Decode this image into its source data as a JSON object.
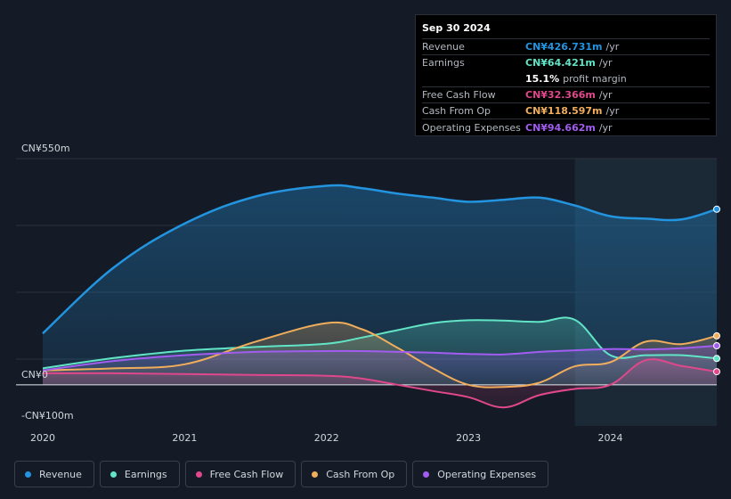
{
  "tooltip": {
    "date": "Sep 30 2024",
    "rows": [
      {
        "label": "Revenue",
        "value": "CN¥426.731m",
        "unit": "/yr",
        "color": "#2394df"
      },
      {
        "label": "Earnings",
        "value": "CN¥64.421m",
        "unit": "/yr",
        "color": "#61e5c6"
      },
      {
        "label": "",
        "value": "15.1%",
        "unit": "profit margin",
        "color": "#ffffff"
      },
      {
        "label": "Free Cash Flow",
        "value": "CN¥32.366m",
        "unit": "/yr",
        "color": "#e0488b"
      },
      {
        "label": "Cash From Op",
        "value": "CN¥118.597m",
        "unit": "/yr",
        "color": "#f0ad5c"
      },
      {
        "label": "Operating Expenses",
        "value": "CN¥94.662m",
        "unit": "/yr",
        "color": "#a25cf0"
      }
    ]
  },
  "legend": [
    {
      "label": "Revenue",
      "color": "#2394df"
    },
    {
      "label": "Earnings",
      "color": "#61e5c6"
    },
    {
      "label": "Free Cash Flow",
      "color": "#e0488b"
    },
    {
      "label": "Cash From Op",
      "color": "#f0ad5c"
    },
    {
      "label": "Operating Expenses",
      "color": "#a25cf0"
    }
  ],
  "chart_data": {
    "type": "area",
    "ylim": [
      -100,
      550
    ],
    "xlim": [
      2020.0,
      2024.75
    ],
    "y_labels": [
      {
        "value": 550,
        "text": "CN¥550m"
      },
      {
        "value": 0,
        "text": "CN¥0"
      },
      {
        "value": -100,
        "text": "-CN¥100m"
      }
    ],
    "x_ticks": [
      {
        "value": 2020,
        "text": "2020"
      },
      {
        "value": 2021,
        "text": "2021"
      },
      {
        "value": 2022,
        "text": "2022"
      },
      {
        "value": 2023,
        "text": "2023"
      },
      {
        "value": 2024,
        "text": "2024"
      }
    ],
    "highlight_start": 2023.75,
    "series": [
      {
        "name": "Revenue",
        "color": "#2394df",
        "x": [
          2020.0,
          2020.5,
          2021.0,
          2021.5,
          2022.0,
          2022.25,
          2022.5,
          2022.75,
          2023.0,
          2023.25,
          2023.5,
          2023.75,
          2024.0,
          2024.25,
          2024.5,
          2024.75
        ],
        "y": [
          125,
          285,
          392,
          458,
          484,
          478,
          465,
          455,
          445,
          450,
          455,
          436,
          410,
          404,
          402,
          427
        ]
      },
      {
        "name": "Earnings",
        "color": "#61e5c6",
        "x": [
          2020.0,
          2020.5,
          2021.0,
          2021.5,
          2022.0,
          2022.25,
          2022.5,
          2022.75,
          2023.0,
          2023.25,
          2023.5,
          2023.75,
          2024.0,
          2024.25,
          2024.5,
          2024.75
        ],
        "y": [
          40,
          65,
          83,
          92,
          100,
          115,
          133,
          150,
          157,
          156,
          153,
          158,
          72,
          72,
          72,
          64
        ]
      },
      {
        "name": "Free Cash Flow",
        "color": "#e0488b",
        "x": [
          2020.0,
          2020.5,
          2021.0,
          2021.5,
          2022.0,
          2022.25,
          2022.5,
          2022.75,
          2023.0,
          2023.25,
          2023.5,
          2023.75,
          2024.0,
          2024.25,
          2024.5,
          2024.75
        ],
        "y": [
          28,
          28,
          26,
          24,
          22,
          15,
          0,
          -15,
          -30,
          -55,
          -25,
          -10,
          0,
          60,
          46,
          32
        ]
      },
      {
        "name": "Cash From Op",
        "color": "#f0ad5c",
        "x": [
          2020.0,
          2020.5,
          2021.0,
          2021.5,
          2022.0,
          2022.25,
          2022.5,
          2022.75,
          2023.0,
          2023.25,
          2023.5,
          2023.75,
          2024.0,
          2024.25,
          2024.5,
          2024.75
        ],
        "y": [
          35,
          40,
          50,
          105,
          150,
          135,
          90,
          40,
          0,
          -5,
          5,
          45,
          55,
          105,
          99,
          119
        ]
      },
      {
        "name": "Operating Expenses",
        "color": "#a25cf0",
        "x": [
          2020.0,
          2020.5,
          2021.0,
          2021.5,
          2022.0,
          2022.25,
          2022.5,
          2022.75,
          2023.0,
          2023.25,
          2023.5,
          2023.75,
          2024.0,
          2024.25,
          2024.5,
          2024.75
        ],
        "y": [
          35,
          58,
          72,
          80,
          82,
          82,
          80,
          78,
          75,
          74,
          80,
          84,
          87,
          86,
          89,
          95
        ]
      }
    ]
  }
}
